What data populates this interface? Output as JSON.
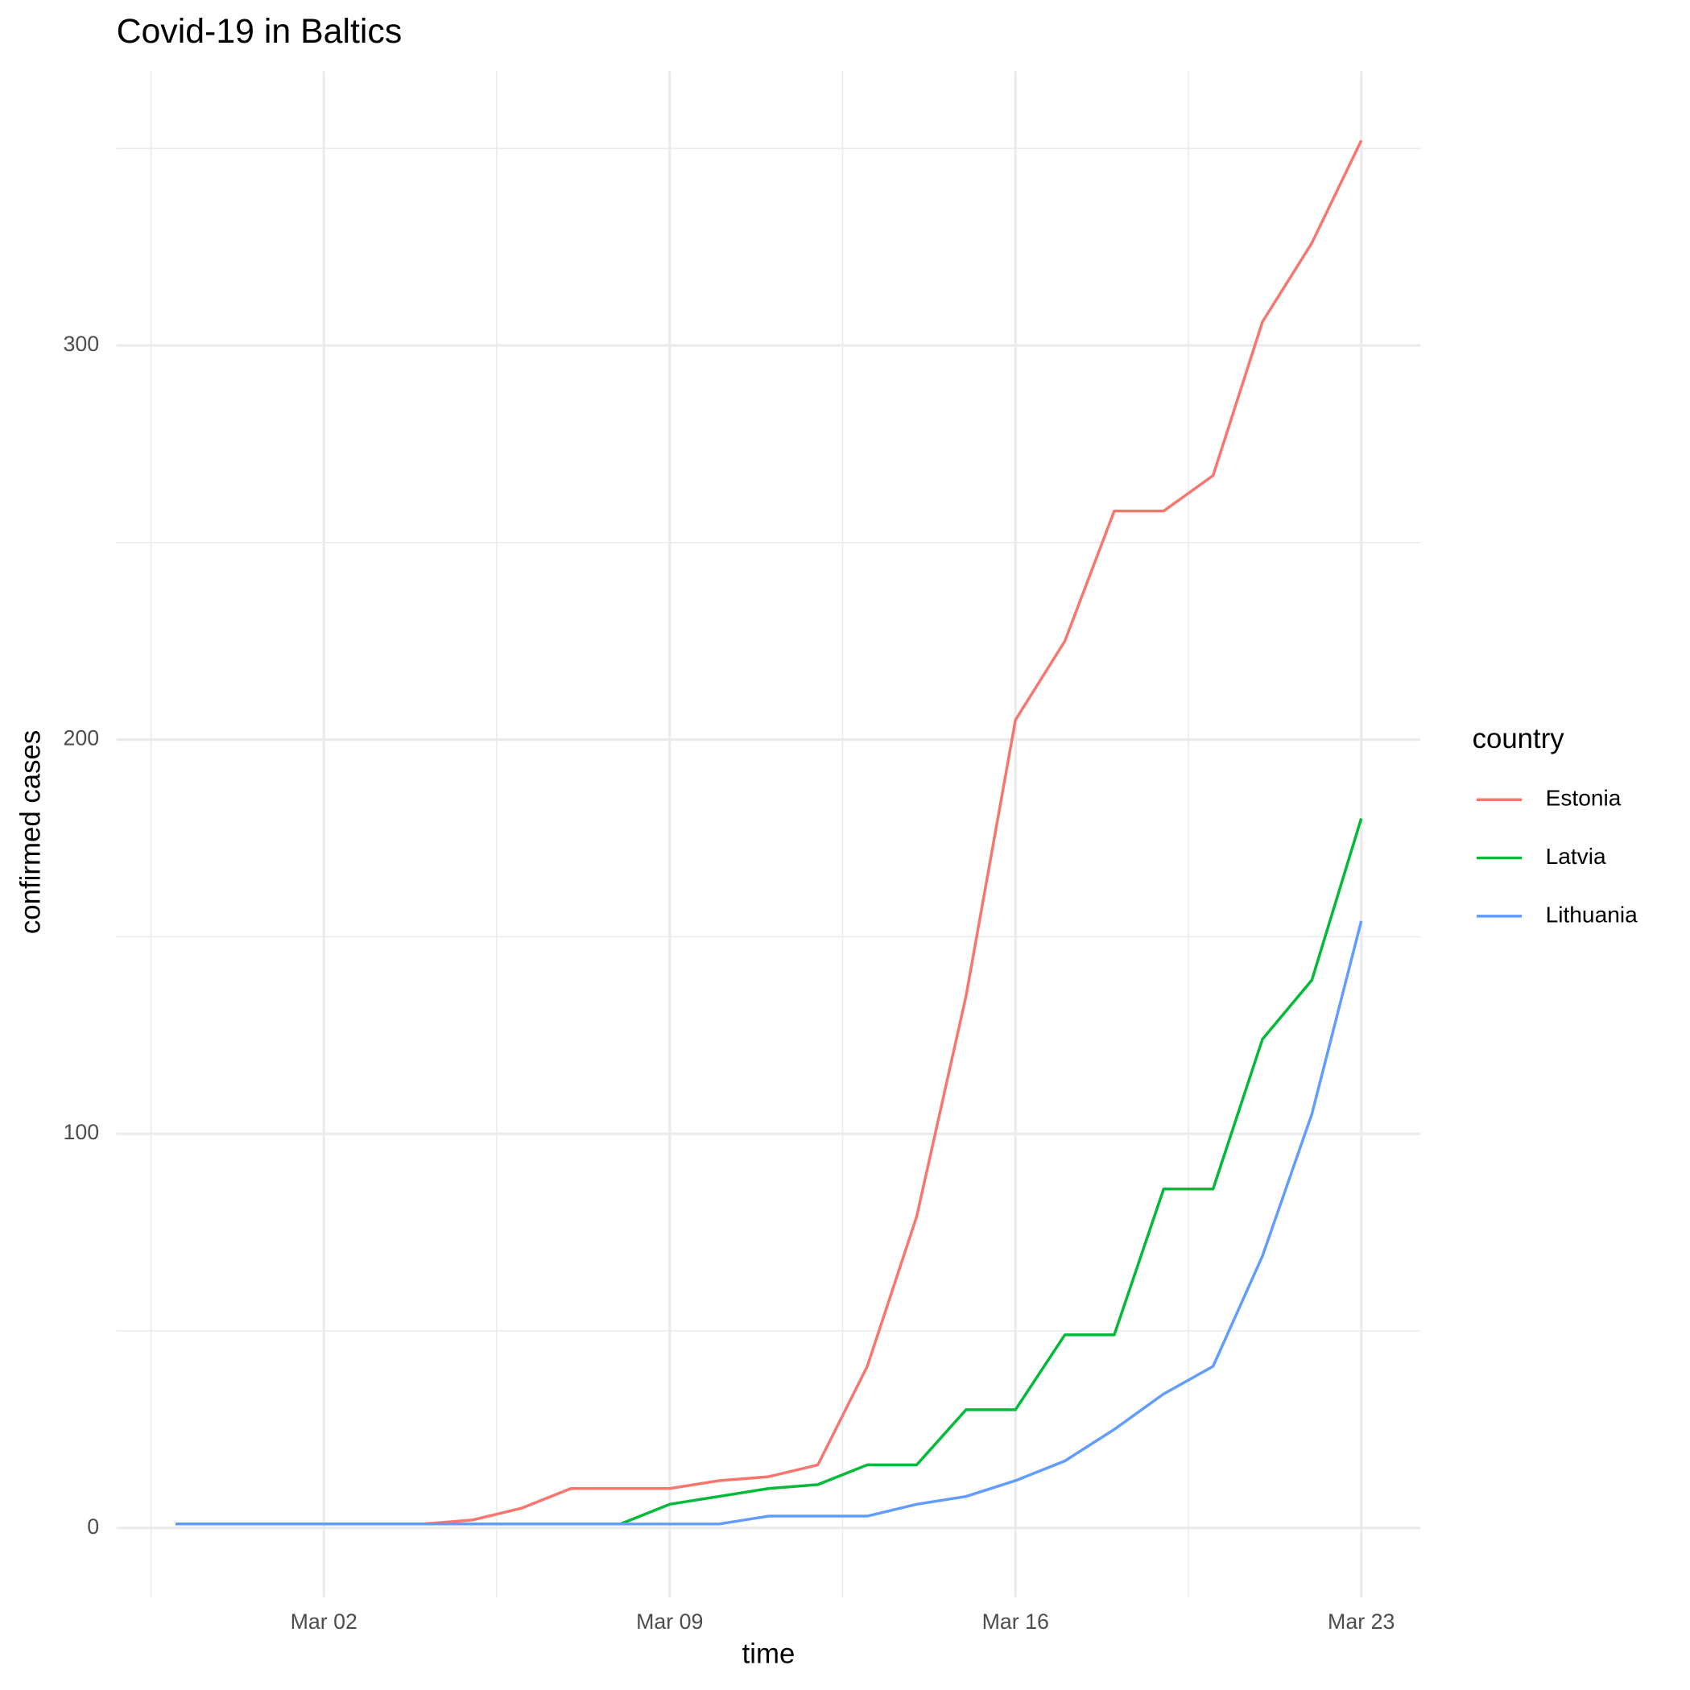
{
  "chart_data": {
    "type": "line",
    "title": "Covid-19 in Baltics",
    "x_label": "time",
    "y_label": "confirmed cases",
    "legend_title": "country",
    "x": [
      "Feb 28",
      "Feb 29",
      "Mar 01",
      "Mar 02",
      "Mar 03",
      "Mar 04",
      "Mar 05",
      "Mar 06",
      "Mar 07",
      "Mar 08",
      "Mar 09",
      "Mar 10",
      "Mar 11",
      "Mar 12",
      "Mar 13",
      "Mar 14",
      "Mar 15",
      "Mar 16",
      "Mar 17",
      "Mar 18",
      "Mar 19",
      "Mar 20",
      "Mar 21",
      "Mar 22",
      "Mar 23"
    ],
    "xticks": [
      "Mar 02",
      "Mar 09",
      "Mar 16",
      "Mar 23"
    ],
    "series": [
      {
        "name": "Estonia",
        "color": "#F8766D",
        "values": [
          1,
          1,
          1,
          1,
          1,
          1,
          2,
          5,
          10,
          10,
          10,
          12,
          13,
          16,
          41,
          79,
          135,
          205,
          225,
          258,
          258,
          267,
          306,
          326,
          352
        ]
      },
      {
        "name": "Latvia",
        "color": "#00BA38",
        "values": [
          1,
          1,
          1,
          1,
          1,
          1,
          1,
          1,
          1,
          1,
          6,
          8,
          10,
          11,
          16,
          16,
          30,
          30,
          49,
          49,
          86,
          86,
          124,
          139,
          180
        ]
      },
      {
        "name": "Lithuania",
        "color": "#619CFF",
        "values": [
          1,
          1,
          1,
          1,
          1,
          1,
          1,
          1,
          1,
          1,
          1,
          1,
          3,
          3,
          3,
          6,
          8,
          12,
          17,
          25,
          34,
          41,
          69,
          105,
          154
        ]
      }
    ],
    "ylim": [
      -17.6,
      369.6
    ],
    "yticks": [
      0,
      100,
      200,
      300
    ],
    "grid": true,
    "legend": "right"
  }
}
